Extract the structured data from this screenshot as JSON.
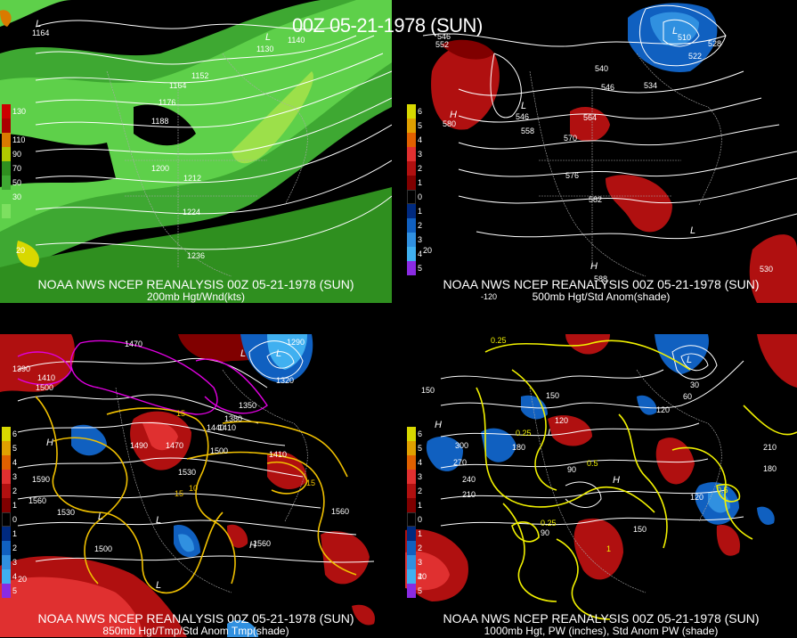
{
  "header": {
    "title": "00Z 05-21-1978 (SUN)"
  },
  "panels": [
    {
      "caption_line1": "NOAA NWS NCEP REANALYSIS 00Z 05-21-1978 (SUN)",
      "caption_line2": "200mb Hgt/Wnd(kts)",
      "legend": [
        {
          "label": "130",
          "color": "#cc0000"
        },
        {
          "label": "110",
          "color": "#d97a00"
        },
        {
          "label": "90",
          "color": "#b0c800"
        },
        {
          "label": "70",
          "color": "#2f8f1f"
        },
        {
          "label": "50",
          "color": "#3ea832"
        },
        {
          "label": "30",
          "color": "#5ed04a"
        }
      ],
      "contour_labels": [
        "1164",
        "1140",
        "1130",
        "1152",
        "1164",
        "1176",
        "1188",
        "1200",
        "1212",
        "1224",
        "1236"
      ]
    },
    {
      "caption_line1": "NOAA NWS NCEP REANALYSIS 00Z 05-21-1978 (SUN)",
      "caption_line2": "500mb Hgt/Std Anom(shade)",
      "legend": [
        {
          "label": "6",
          "color": "#d8d800"
        },
        {
          "label": "5",
          "color": "#e0a000"
        },
        {
          "label": "4",
          "color": "#e06000"
        },
        {
          "label": "3",
          "color": "#e03030"
        },
        {
          "label": "2",
          "color": "#b01010"
        },
        {
          "label": "1",
          "color": "#800000"
        },
        {
          "label": "0",
          "color": "#000000"
        },
        {
          "label": "1",
          "color": "#002a80"
        },
        {
          "label": "2",
          "color": "#1060c0"
        },
        {
          "label": "3",
          "color": "#3090e0"
        },
        {
          "label": "4",
          "color": "#40b0f0"
        },
        {
          "label": "5",
          "color": "#8a2be2"
        }
      ],
      "contour_labels": [
        "552",
        "546",
        "510",
        "528",
        "522",
        "540",
        "546",
        "534",
        "564",
        "558",
        "570",
        "576",
        "582",
        "588",
        "530",
        "580"
      ]
    },
    {
      "caption_line1": "NOAA NWS NCEP REANALYSIS 00Z 05-21-1978 (SUN)",
      "caption_line2": "850mb Hgt/Tmp/Std Anom Tmp(shade)",
      "legend": [
        {
          "label": "6",
          "color": "#d8d800"
        },
        {
          "label": "5",
          "color": "#e0a000"
        },
        {
          "label": "4",
          "color": "#e06000"
        },
        {
          "label": "3",
          "color": "#e03030"
        },
        {
          "label": "2",
          "color": "#b01010"
        },
        {
          "label": "1",
          "color": "#800000"
        },
        {
          "label": "0",
          "color": "#000000"
        },
        {
          "label": "1",
          "color": "#002a80"
        },
        {
          "label": "2",
          "color": "#1060c0"
        },
        {
          "label": "3",
          "color": "#3090e0"
        },
        {
          "label": "4",
          "color": "#40b0f0"
        },
        {
          "label": "5",
          "color": "#8a2be2"
        }
      ],
      "contour_labels": [
        "1470",
        "1350",
        "1380",
        "1410",
        "1440",
        "1500",
        "1530",
        "1560",
        "1590",
        "1500",
        "1560",
        "1470",
        "1320",
        "15",
        "10",
        "15",
        "15"
      ]
    },
    {
      "caption_line1": "NOAA NWS NCEP REANALYSIS 00Z 05-21-1978 (SUN)",
      "caption_line2": "1000mb Hgt, PW (inches), Std Anom PW (shade)",
      "legend": [
        {
          "label": "6",
          "color": "#d8d800"
        },
        {
          "label": "5",
          "color": "#e0a000"
        },
        {
          "label": "4",
          "color": "#e06000"
        },
        {
          "label": "3",
          "color": "#e03030"
        },
        {
          "label": "2",
          "color": "#b01010"
        },
        {
          "label": "1",
          "color": "#800000"
        },
        {
          "label": "0",
          "color": "#000000"
        },
        {
          "label": "1",
          "color": "#002a80"
        },
        {
          "label": "2",
          "color": "#1060c0"
        },
        {
          "label": "3",
          "color": "#3090e0"
        },
        {
          "label": "4",
          "color": "#40b0f0"
        },
        {
          "label": "5",
          "color": "#8a2be2"
        }
      ],
      "contour_labels": [
        "0.25",
        "150",
        "120",
        "150",
        "300",
        "270",
        "240",
        "210",
        "180",
        "90",
        "60",
        "30",
        "0.25",
        "0.5",
        "0.5",
        "0.25",
        "1",
        "150",
        "180",
        "210",
        "120",
        "90"
      ]
    }
  ]
}
